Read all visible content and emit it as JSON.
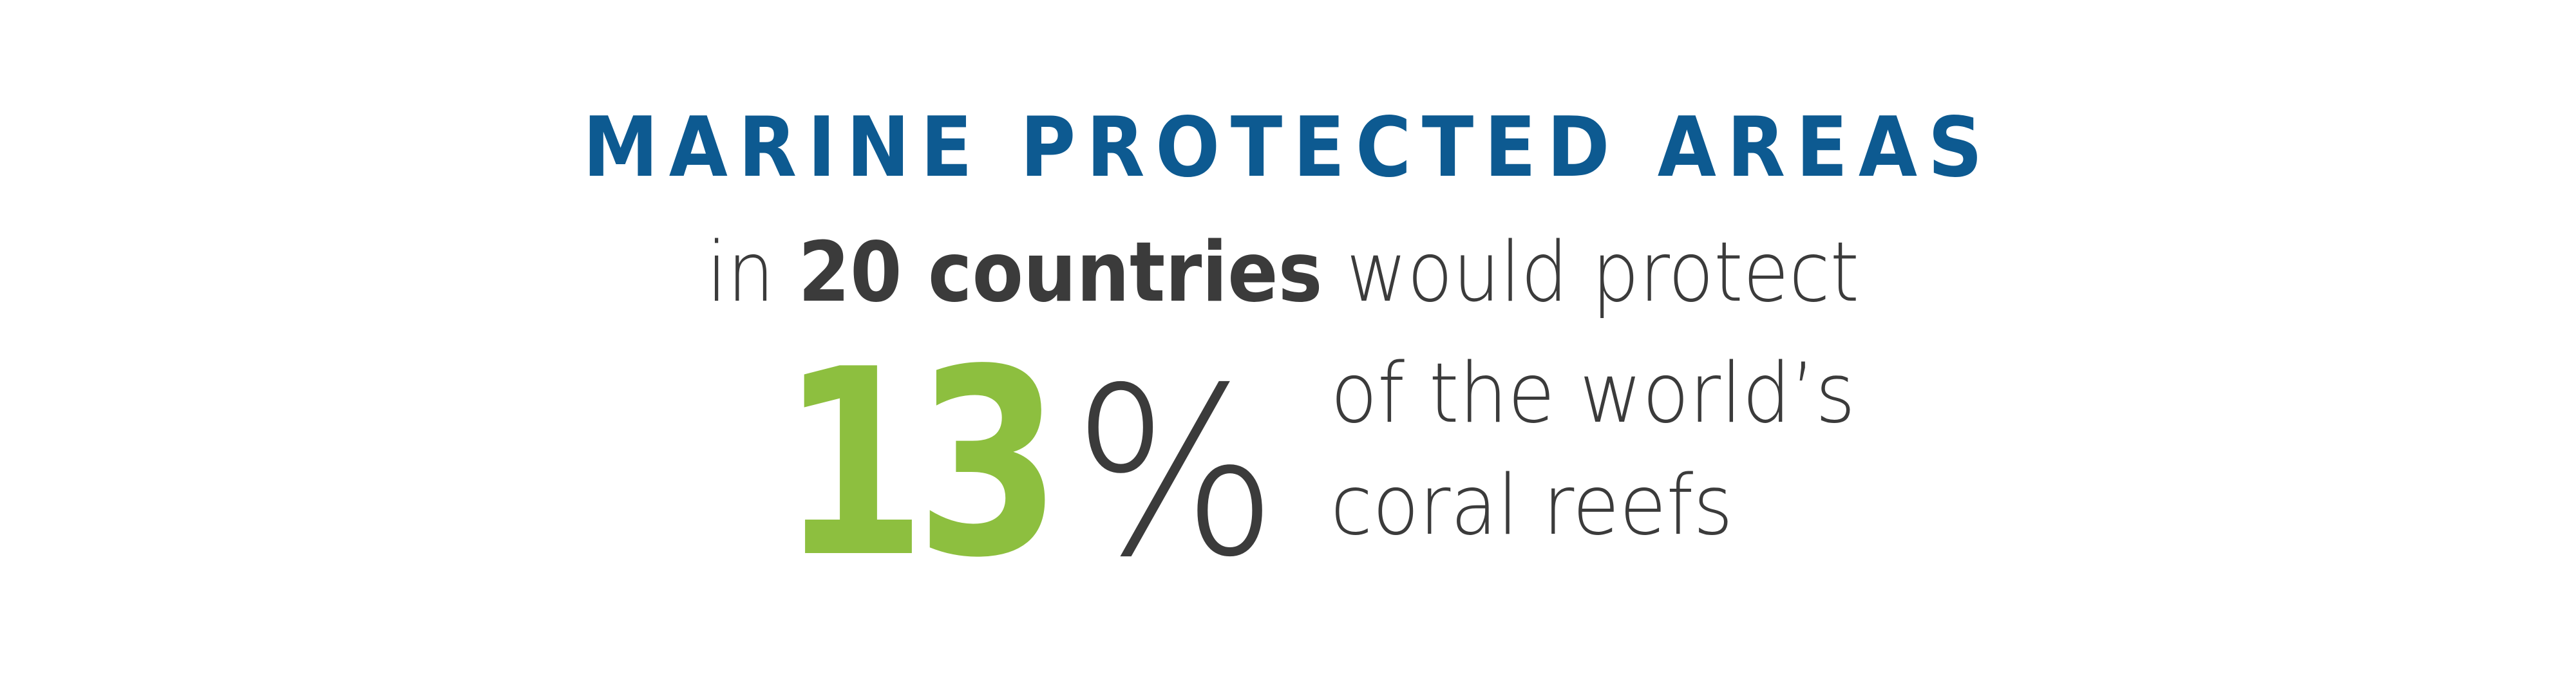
{
  "title": "MARINE PROTECTED AREAS",
  "statement": {
    "prefix": "in",
    "emphasis": "20 countries",
    "suffix": "would protect"
  },
  "stat": {
    "number": "13",
    "unit": "%"
  },
  "caption": [
    "of the world’s",
    "coral reefs"
  ]
}
